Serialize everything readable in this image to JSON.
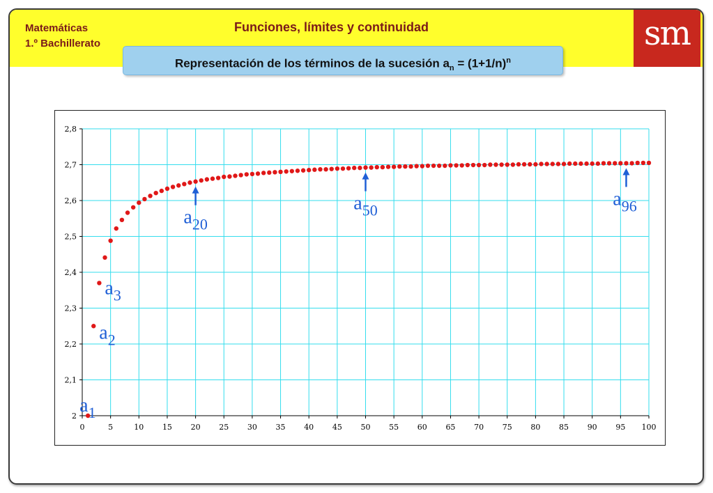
{
  "header": {
    "subject_line1": "Matemáticas",
    "subject_line2": "1.º Bachillerato",
    "unit_title": "Funciones, límites y continuidad",
    "logo_text": "sm"
  },
  "slide_title": {
    "prefix": "Representación de los términos de la sucesión a",
    "sub": "n",
    "middle": " = (1+1/n)",
    "sup": "n"
  },
  "chart_data": {
    "type": "scatter",
    "formula": "a_n = (1+1/n)^n",
    "x_range": [
      0,
      100
    ],
    "y_range": [
      2,
      2.8
    ],
    "x_ticks": [
      "0",
      "5",
      "10",
      "15",
      "20",
      "25",
      "30",
      "35",
      "40",
      "45",
      "50",
      "55",
      "60",
      "65",
      "70",
      "75",
      "80",
      "85",
      "90",
      "95",
      "100"
    ],
    "y_ticks": [
      "2",
      "2,1",
      "2,2",
      "2,3",
      "2,4",
      "2,5",
      "2,6",
      "2,7",
      "2,8"
    ],
    "grid": true,
    "colors": {
      "points": "#e01818",
      "grid": "#33ddee",
      "annotations": "#1f5fd6"
    },
    "points": [
      [
        1,
        2
      ],
      [
        2,
        2.25
      ],
      [
        3,
        2.37
      ],
      [
        4,
        2.441
      ],
      [
        5,
        2.488
      ],
      [
        6,
        2.522
      ],
      [
        7,
        2.546
      ],
      [
        8,
        2.566
      ],
      [
        9,
        2.581
      ],
      [
        10,
        2.594
      ],
      [
        11,
        2.604
      ],
      [
        12,
        2.613
      ],
      [
        13,
        2.621
      ],
      [
        14,
        2.627
      ],
      [
        15,
        2.633
      ],
      [
        16,
        2.638
      ],
      [
        17,
        2.642
      ],
      [
        18,
        2.646
      ],
      [
        19,
        2.65
      ],
      [
        20,
        2.653
      ],
      [
        21,
        2.656
      ],
      [
        22,
        2.659
      ],
      [
        23,
        2.661
      ],
      [
        24,
        2.663
      ],
      [
        25,
        2.666
      ],
      [
        26,
        2.667
      ],
      [
        27,
        2.669
      ],
      [
        28,
        2.671
      ],
      [
        29,
        2.673
      ],
      [
        30,
        2.674
      ],
      [
        31,
        2.675
      ],
      [
        32,
        2.677
      ],
      [
        33,
        2.678
      ],
      [
        34,
        2.679
      ],
      [
        35,
        2.68
      ],
      [
        36,
        2.681
      ],
      [
        37,
        2.682
      ],
      [
        38,
        2.683
      ],
      [
        39,
        2.684
      ],
      [
        40,
        2.685
      ],
      [
        41,
        2.686
      ],
      [
        42,
        2.687
      ],
      [
        43,
        2.687
      ],
      [
        44,
        2.688
      ],
      [
        45,
        2.689
      ],
      [
        46,
        2.689
      ],
      [
        47,
        2.69
      ],
      [
        48,
        2.691
      ],
      [
        49,
        2.691
      ],
      [
        50,
        2.692
      ],
      [
        51,
        2.692
      ],
      [
        52,
        2.693
      ],
      [
        53,
        2.693
      ],
      [
        54,
        2.694
      ],
      [
        55,
        2.694
      ],
      [
        56,
        2.695
      ],
      [
        57,
        2.695
      ],
      [
        58,
        2.695
      ],
      [
        59,
        2.696
      ],
      [
        60,
        2.696
      ],
      [
        61,
        2.697
      ],
      [
        62,
        2.697
      ],
      [
        63,
        2.697
      ],
      [
        64,
        2.697
      ],
      [
        65,
        2.698
      ],
      [
        66,
        2.698
      ],
      [
        67,
        2.698
      ],
      [
        68,
        2.699
      ],
      [
        69,
        2.699
      ],
      [
        70,
        2.699
      ],
      [
        71,
        2.699
      ],
      [
        72,
        2.7
      ],
      [
        73,
        2.7
      ],
      [
        74,
        2.7
      ],
      [
        75,
        2.7
      ],
      [
        76,
        2.7
      ],
      [
        77,
        2.701
      ],
      [
        78,
        2.701
      ],
      [
        79,
        2.701
      ],
      [
        80,
        2.701
      ],
      [
        81,
        2.702
      ],
      [
        82,
        2.702
      ],
      [
        83,
        2.702
      ],
      [
        84,
        2.702
      ],
      [
        85,
        2.702
      ],
      [
        86,
        2.703
      ],
      [
        87,
        2.703
      ],
      [
        88,
        2.703
      ],
      [
        89,
        2.703
      ],
      [
        90,
        2.703
      ],
      [
        91,
        2.703
      ],
      [
        92,
        2.704
      ],
      [
        93,
        2.704
      ],
      [
        94,
        2.704
      ],
      [
        95,
        2.704
      ],
      [
        96,
        2.704
      ],
      [
        97,
        2.704
      ],
      [
        98,
        2.705
      ],
      [
        99,
        2.705
      ],
      [
        100,
        2.705
      ]
    ],
    "annotations": [
      {
        "base": "a",
        "sub": "1",
        "n": 1,
        "arrow": false
      },
      {
        "base": "a",
        "sub": "2",
        "n": 2,
        "arrow": false
      },
      {
        "base": "a",
        "sub": "3",
        "n": 3,
        "arrow": false
      },
      {
        "base": "a",
        "sub": "20",
        "n": 20,
        "arrow": true
      },
      {
        "base": "a",
        "sub": "50",
        "n": 50,
        "arrow": true
      },
      {
        "base": "a",
        "sub": "96",
        "n": 96,
        "arrow": true
      }
    ]
  }
}
